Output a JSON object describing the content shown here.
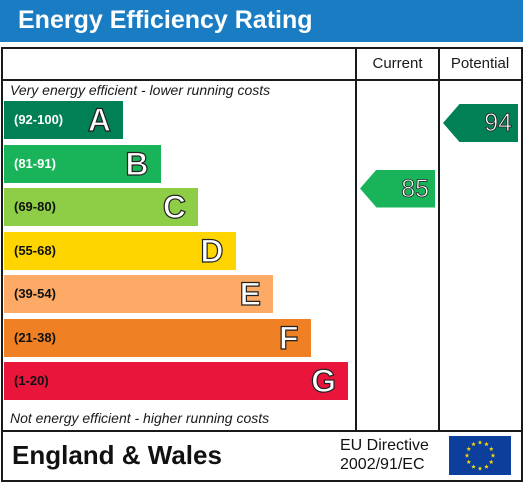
{
  "title": "Energy Efficiency Rating",
  "columns": {
    "current": "Current",
    "potential": "Potential"
  },
  "top_note": "Very energy efficient - lower running costs",
  "bottom_note": "Not energy efficient - higher running costs",
  "chart_data": {
    "type": "bar",
    "categories": [
      "A",
      "B",
      "C",
      "D",
      "E",
      "F",
      "G"
    ],
    "bands": [
      {
        "range": "(92-100)",
        "letter": "A",
        "color": "#008054"
      },
      {
        "range": "(81-91)",
        "letter": "B",
        "color": "#19b459"
      },
      {
        "range": "(69-80)",
        "letter": "C",
        "color": "#8dce46"
      },
      {
        "range": "(55-68)",
        "letter": "D",
        "color": "#ffd500"
      },
      {
        "range": "(39-54)",
        "letter": "E",
        "color": "#fcaa65"
      },
      {
        "range": "(21-38)",
        "letter": "F",
        "color": "#ef8023"
      },
      {
        "range": "(1-20)",
        "letter": "G",
        "color": "#e9153b"
      }
    ],
    "current": {
      "value": "85",
      "band": "B",
      "color": "#19b459"
    },
    "potential": {
      "value": "94",
      "band": "A",
      "color": "#008054"
    }
  },
  "footer": {
    "region": "England & Wales",
    "directive_line1": "EU Directive",
    "directive_line2": "2002/91/EC",
    "flag_icon": "eu-flag-icon"
  }
}
